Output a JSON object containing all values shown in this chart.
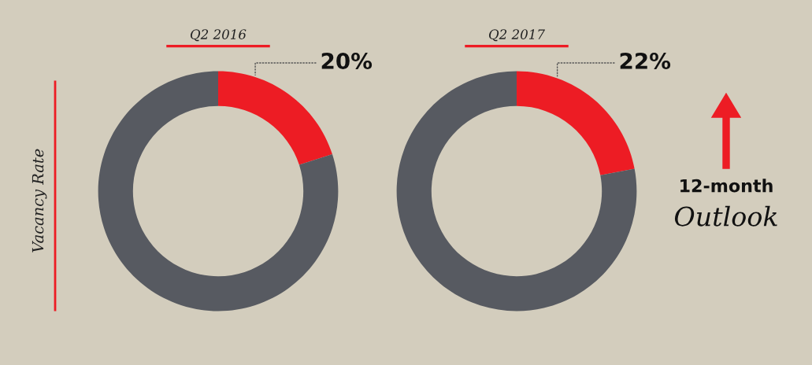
{
  "chart_data": [
    {
      "type": "donut",
      "title": "Q2 2016",
      "categories": [
        null,
        null
      ],
      "values": [
        20,
        80
      ],
      "colors": [
        "#ed1c24",
        "#575a61"
      ],
      "value_labels": [
        "20%",
        null
      ],
      "annotations": [
        "Vacancy Rate"
      ]
    },
    {
      "type": "donut",
      "title": "Q2 2017",
      "categories": [
        null,
        null
      ],
      "values": [
        22,
        78
      ],
      "colors": [
        "#ed1c24",
        "#575a61"
      ],
      "value_labels": [
        "22%",
        null
      ]
    },
    {
      "type": "other",
      "annotations": [
        "12-month",
        "Outlook"
      ]
    }
  ]
}
